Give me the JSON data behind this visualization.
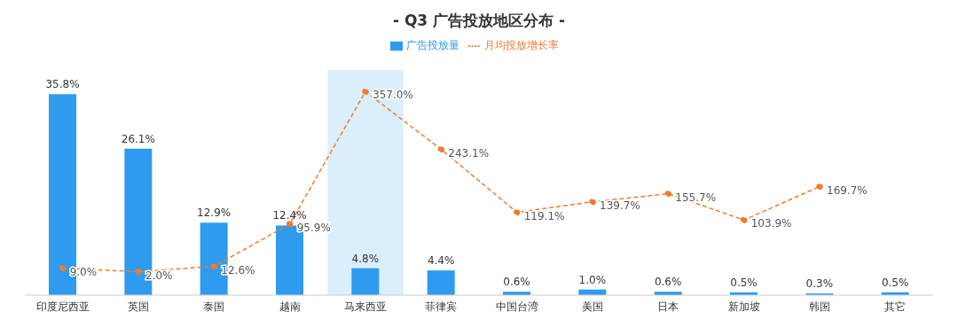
{
  "chart_data": {
    "type": "bar",
    "title": "- Q3 广告投放地区分布 -",
    "categories": [
      "印度尼西亚",
      "英国",
      "泰国",
      "越南",
      "马来西亚",
      "菲律宾",
      "中国台湾",
      "美国",
      "日本",
      "新加坡",
      "韩国",
      "其它"
    ],
    "series": [
      {
        "name": "广告投放量",
        "color": "#2e9bef",
        "values": [
          35.8,
          26.1,
          12.9,
          12.4,
          4.8,
          4.4,
          0.6,
          1.0,
          0.6,
          0.5,
          0.3,
          0.5
        ],
        "value_labels": [
          "35.8%",
          "26.1%",
          "12.9%",
          "12.4%",
          "4.8%",
          "4.4%",
          "0.6%",
          "1.0%",
          "0.6%",
          "0.5%",
          "0.3%",
          "0.5%"
        ]
      },
      {
        "name": "月均投放增长率",
        "type": "line",
        "axis": "y2",
        "color": "#ed7d31",
        "line_style": "dashed",
        "marker": "circle",
        "values": [
          9.0,
          2.0,
          12.6,
          95.9,
          357.0,
          243.1,
          119.1,
          139.7,
          155.7,
          103.9,
          169.7,
          null
        ],
        "value_labels": [
          "9.0%",
          "2.0%",
          "12.6%",
          "95.9%",
          "357.0%",
          "243.1%",
          "119.1%",
          "139.7%",
          "155.7%",
          "103.9%",
          "169.7%",
          null
        ]
      }
    ],
    "bands": [
      {
        "axis": "x",
        "from": "马来西亚",
        "to": "马来西亚",
        "color": "#dbeefc"
      }
    ],
    "legend": "top"
  }
}
